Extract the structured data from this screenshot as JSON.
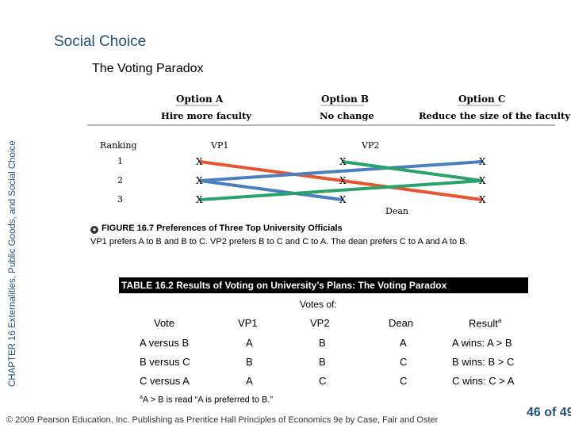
{
  "side_label": "CHAPTER 16  Externalities, Public Goods, and Social Choice",
  "slide_title": "Social Choice",
  "slide_subtitle": "The Voting Paradox",
  "figure": {
    "options": [
      {
        "name": "Option A",
        "desc": "Hire more faculty"
      },
      {
        "name": "Option B",
        "desc": "No change"
      },
      {
        "name": "Option C",
        "desc": "Reduce the size of the faculty"
      }
    ],
    "ranking_label": "Ranking",
    "ranks": [
      "1",
      "2",
      "3"
    ],
    "vp1_label": "VP1",
    "vp2_label": "VP2",
    "dean_label": "Dean",
    "mark": "X",
    "colors": {
      "vp1": "#e8542c",
      "vp2": "#2aa36b",
      "dean": "#4a7fc0",
      "rule": "#999999",
      "title": "#1f4e79"
    },
    "caption_icon": "figure-icon",
    "caption": "FIGURE 16.7  Preferences of Three Top University Officials",
    "description": "VP1 prefers A to B and B to C.  VP2 prefers B to C and C to A.  The dean prefers C to A and A to B."
  },
  "table": {
    "title": "TABLE 16.2  Results of Voting on University’s Plans: The Voting Paradox",
    "votes_of": "Votes of:",
    "headers": [
      "Vote",
      "VP1",
      "VP2",
      "Dean",
      "Result"
    ],
    "header_sup": "a",
    "rows": [
      [
        "A versus B",
        "A",
        "B",
        "A",
        "A wins:  A > B"
      ],
      [
        "B versus C",
        "B",
        "B",
        "C",
        "B wins:  B > C"
      ],
      [
        "C versus A",
        "A",
        "C",
        "C",
        "C wins:  C > A"
      ]
    ],
    "footnote_sup": "a",
    "footnote": "A > B is read “A is preferred to B.”"
  },
  "copyright": "© 2009 Pearson Education, Inc. Publishing as Prentice Hall   Principles of Economics 9e by Case, Fair and Oster",
  "page_number": "46 of 49"
}
